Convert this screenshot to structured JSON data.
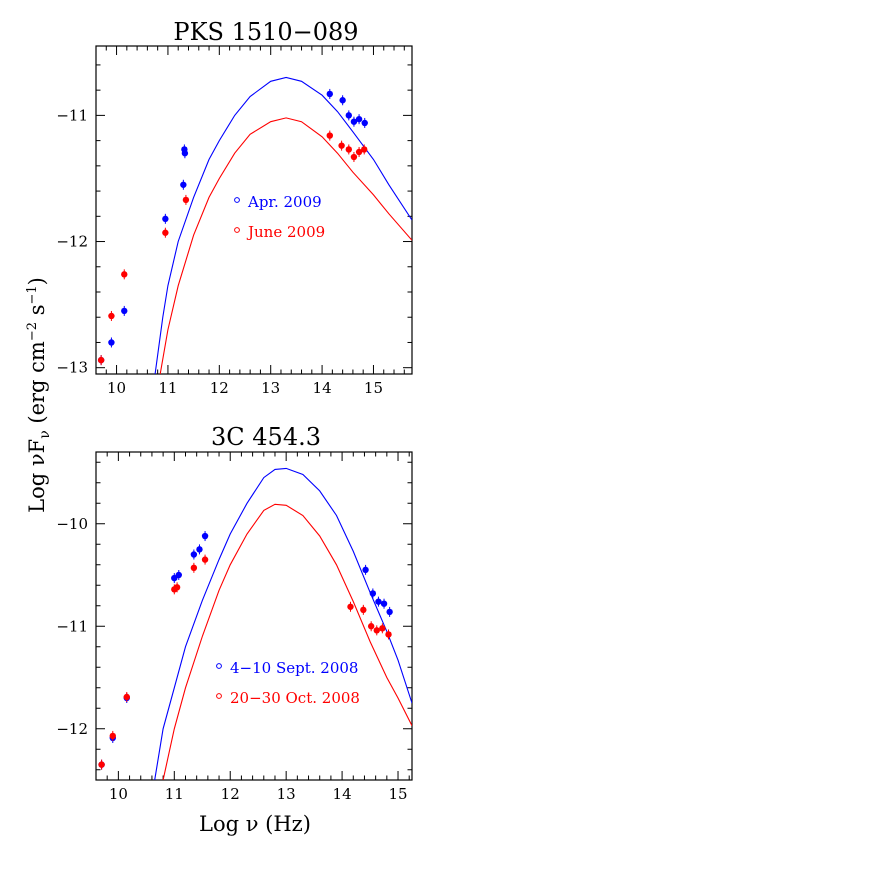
{
  "axes": {
    "ylabel": "Log νFν (erg cm⁻² s⁻¹)",
    "ylabel_parts": {
      "main": "Log νF",
      "sub": "ν",
      "unit_a": " (erg cm",
      "exp_a": "−2",
      "unit_b": " s",
      "exp_b": "−1",
      "close": ")"
    },
    "xlabel": "Log ν (Hz)"
  },
  "chart_data": [
    {
      "type": "scatter",
      "title": "PKS 1510−089",
      "xlim": [
        9.6,
        15.75
      ],
      "ylim": [
        -13.05,
        -10.45
      ],
      "xticks": [
        10,
        11,
        12,
        13,
        14,
        15
      ],
      "xtick_labels": [
        "10",
        "11",
        "12",
        "13",
        "14",
        "15"
      ],
      "show_xtick_labels": true,
      "yticks": [
        -11,
        -12,
        -13
      ],
      "ytick_labels": [
        "−11",
        "−12",
        "−13"
      ],
      "legend_position": "center",
      "series": [
        {
          "name": "Apr. 2009",
          "color": "#0000ff",
          "points": [
            [
              9.7,
              -12.94
            ],
            [
              9.9,
              -12.8
            ],
            [
              10.15,
              -12.55
            ],
            [
              10.95,
              -11.82
            ],
            [
              11.3,
              -11.55
            ],
            [
              11.32,
              -11.27
            ],
            [
              11.33,
              -11.3
            ],
            [
              14.15,
              -10.83
            ],
            [
              14.4,
              -10.88
            ],
            [
              14.52,
              -11.0
            ],
            [
              14.62,
              -11.05
            ],
            [
              14.72,
              -11.03
            ],
            [
              14.83,
              -11.06
            ]
          ],
          "model": [
            [
              10.75,
              -13.05
            ],
            [
              10.9,
              -12.6
            ],
            [
              11.0,
              -12.35
            ],
            [
              11.2,
              -12.0
            ],
            [
              11.5,
              -11.65
            ],
            [
              11.8,
              -11.35
            ],
            [
              12.0,
              -11.2
            ],
            [
              12.3,
              -11.0
            ],
            [
              12.6,
              -10.85
            ],
            [
              13.0,
              -10.73
            ],
            [
              13.3,
              -10.7
            ],
            [
              13.6,
              -10.73
            ],
            [
              14.0,
              -10.84
            ],
            [
              14.3,
              -10.97
            ],
            [
              14.6,
              -11.13
            ],
            [
              15.0,
              -11.35
            ],
            [
              15.3,
              -11.55
            ],
            [
              15.75,
              -11.83
            ]
          ]
        },
        {
          "name": "June 2009",
          "color": "#ff0000",
          "points": [
            [
              9.7,
              -12.94
            ],
            [
              9.9,
              -12.59
            ],
            [
              10.15,
              -12.26
            ],
            [
              10.95,
              -11.93
            ],
            [
              11.35,
              -11.67
            ],
            [
              14.15,
              -11.16
            ],
            [
              14.38,
              -11.24
            ],
            [
              14.52,
              -11.27
            ],
            [
              14.62,
              -11.33
            ],
            [
              14.72,
              -11.29
            ],
            [
              14.82,
              -11.27
            ]
          ],
          "model": [
            [
              10.85,
              -13.05
            ],
            [
              11.0,
              -12.7
            ],
            [
              11.2,
              -12.35
            ],
            [
              11.5,
              -11.95
            ],
            [
              11.8,
              -11.65
            ],
            [
              12.0,
              -11.5
            ],
            [
              12.3,
              -11.3
            ],
            [
              12.6,
              -11.15
            ],
            [
              13.0,
              -11.05
            ],
            [
              13.3,
              -11.02
            ],
            [
              13.6,
              -11.05
            ],
            [
              14.0,
              -11.17
            ],
            [
              14.3,
              -11.3
            ],
            [
              14.6,
              -11.45
            ],
            [
              15.0,
              -11.63
            ],
            [
              15.3,
              -11.78
            ],
            [
              15.75,
              -11.99
            ]
          ]
        }
      ]
    },
    {
      "type": "scatter",
      "title": "3C 454.3",
      "xlim": [
        9.6,
        15.25
      ],
      "ylim": [
        -12.5,
        -9.3
      ],
      "xticks": [
        10,
        11,
        12,
        13,
        14,
        15
      ],
      "xtick_labels": [
        "10",
        "11",
        "12",
        "13",
        "14",
        "15"
      ],
      "show_xtick_labels": true,
      "yticks": [
        -10,
        -11,
        -12
      ],
      "ytick_labels": [
        "−10",
        "−11",
        "−12"
      ],
      "legend_position": "lower-right",
      "series": [
        {
          "name": "4−10 Sept. 2008",
          "color": "#0000ff",
          "points": [
            [
              9.7,
              -12.35
            ],
            [
              9.9,
              -12.09
            ],
            [
              10.15,
              -11.7
            ],
            [
              11.0,
              -10.53
            ],
            [
              11.08,
              -10.5
            ],
            [
              11.35,
              -10.3
            ],
            [
              11.45,
              -10.25
            ],
            [
              11.55,
              -10.12
            ],
            [
              14.42,
              -10.45
            ],
            [
              14.55,
              -10.68
            ],
            [
              14.65,
              -10.76
            ],
            [
              14.75,
              -10.78
            ],
            [
              14.85,
              -10.86
            ]
          ],
          "model": [
            [
              10.65,
              -12.5
            ],
            [
              10.8,
              -12.0
            ],
            [
              11.0,
              -11.6
            ],
            [
              11.2,
              -11.2
            ],
            [
              11.5,
              -10.75
            ],
            [
              11.8,
              -10.35
            ],
            [
              12.0,
              -10.1
            ],
            [
              12.3,
              -9.8
            ],
            [
              12.6,
              -9.55
            ],
            [
              12.8,
              -9.47
            ],
            [
              13.0,
              -9.46
            ],
            [
              13.3,
              -9.52
            ],
            [
              13.6,
              -9.68
            ],
            [
              13.9,
              -9.92
            ],
            [
              14.2,
              -10.27
            ],
            [
              14.5,
              -10.67
            ],
            [
              14.8,
              -11.05
            ],
            [
              15.0,
              -11.33
            ],
            [
              15.25,
              -11.75
            ]
          ]
        },
        {
          "name": "20−30 Oct. 2008",
          "color": "#ff0000",
          "points": [
            [
              9.7,
              -12.35
            ],
            [
              9.9,
              -12.07
            ],
            [
              10.15,
              -11.69
            ],
            [
              11.0,
              -10.64
            ],
            [
              11.05,
              -10.62
            ],
            [
              11.35,
              -10.43
            ],
            [
              11.55,
              -10.35
            ],
            [
              14.15,
              -10.81
            ],
            [
              14.38,
              -10.84
            ],
            [
              14.52,
              -11.0
            ],
            [
              14.62,
              -11.04
            ],
            [
              14.72,
              -11.02
            ],
            [
              14.83,
              -11.08
            ]
          ],
          "model": [
            [
              10.8,
              -12.5
            ],
            [
              11.0,
              -12.0
            ],
            [
              11.2,
              -11.6
            ],
            [
              11.5,
              -11.1
            ],
            [
              11.8,
              -10.65
            ],
            [
              12.0,
              -10.4
            ],
            [
              12.3,
              -10.1
            ],
            [
              12.6,
              -9.87
            ],
            [
              12.8,
              -9.81
            ],
            [
              13.0,
              -9.82
            ],
            [
              13.3,
              -9.92
            ],
            [
              13.6,
              -10.12
            ],
            [
              13.9,
              -10.4
            ],
            [
              14.2,
              -10.76
            ],
            [
              14.5,
              -11.15
            ],
            [
              14.8,
              -11.5
            ],
            [
              15.0,
              -11.7
            ],
            [
              15.25,
              -11.97
            ]
          ]
        }
      ]
    }
  ]
}
